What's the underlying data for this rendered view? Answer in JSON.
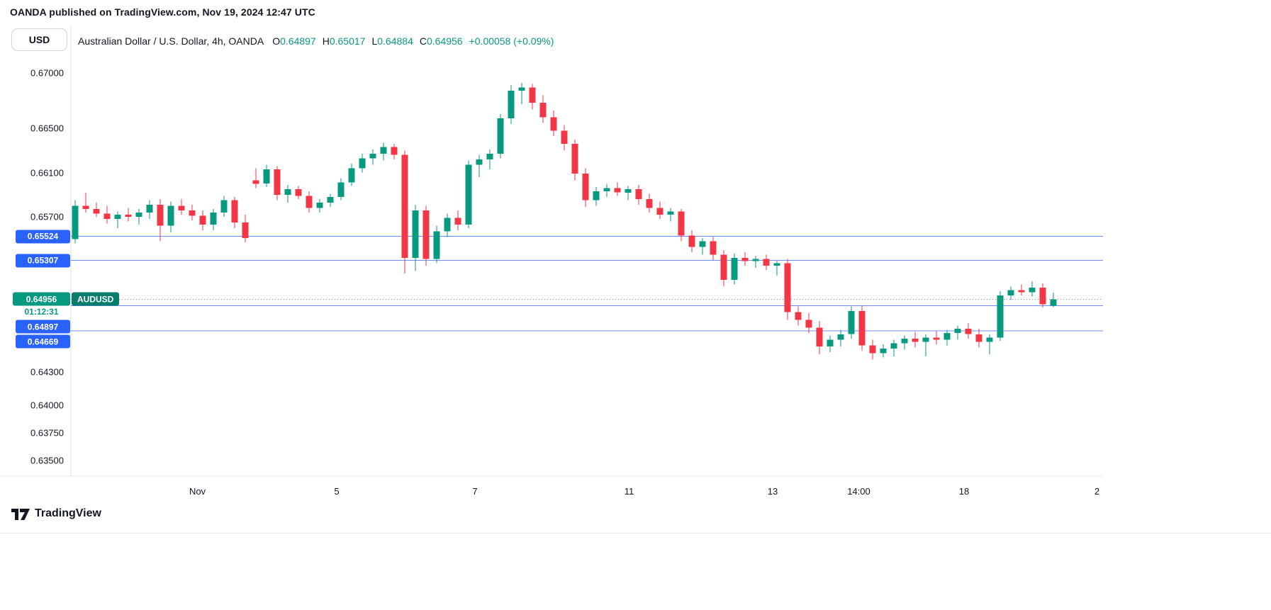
{
  "page": {
    "attribution": "OANDA published on TradingView.com, Nov 19, 2024 12:47 UTC",
    "footer_brand": "TradingView"
  },
  "colors": {
    "up": "#089981",
    "down": "#F23645",
    "level_line": "#6E8EF5",
    "level_badge": "#2962FF",
    "last_price_line": "#80848E",
    "axis_line": "#E0E3EB",
    "symbol_chip": "#077D6B",
    "text": "#131722"
  },
  "header": {
    "symbol_title": "Australian Dollar / U.S. Dollar, 4h, OANDA",
    "ohlc": {
      "o_label": "O",
      "o": "0.64897",
      "h_label": "H",
      "h": "0.65017",
      "l_label": "L",
      "l": "0.64884",
      "c_label": "C",
      "c": "0.64956",
      "change": "+0.00058 (+0.09%)"
    }
  },
  "price_axis": {
    "currency_button": "USD",
    "ticks": [
      {
        "label": "0.67000",
        "value": 0.67
      },
      {
        "label": "0.66500",
        "value": 0.665
      },
      {
        "label": "0.66100",
        "value": 0.661
      },
      {
        "label": "0.65700",
        "value": 0.657
      },
      {
        "label": "0.64300",
        "value": 0.643
      },
      {
        "label": "0.64000",
        "value": 0.64
      },
      {
        "label": "0.63750",
        "value": 0.6375
      },
      {
        "label": "0.63500",
        "value": 0.635
      }
    ],
    "levels": [
      {
        "label": "0.65524",
        "value": 0.65524
      },
      {
        "label": "0.65307",
        "value": 0.65307
      },
      {
        "label": "0.64897",
        "value": 0.64897
      },
      {
        "label": "0.64669",
        "value": 0.64669
      }
    ],
    "last_price": {
      "label": "0.64956",
      "value": 0.64956,
      "symbol_badge": "AUDUSD",
      "countdown": "01:12:31"
    }
  },
  "time_axis": {
    "labels": [
      {
        "text": "Nov",
        "candle_index": 11.5
      },
      {
        "text": "5",
        "candle_index": 24.6
      },
      {
        "text": "7",
        "candle_index": 37.6
      },
      {
        "text": "11",
        "candle_index": 52.1
      },
      {
        "text": "13",
        "candle_index": 65.6
      },
      {
        "text": "14:00",
        "candle_index": 73.7
      },
      {
        "text": "18",
        "candle_index": 83.6
      },
      {
        "text": "2",
        "candle_index": 96.1
      }
    ]
  },
  "chart_data": {
    "type": "candlestick",
    "title": "Australian Dollar / U.S. Dollar, 4h, OANDA",
    "symbol": "AUDUSD",
    "timeframe": "4h",
    "exchange": "OANDA",
    "price_range": [
      0.635,
      0.67
    ],
    "grid": false,
    "time_labels": [
      "Nov",
      "5",
      "7",
      "11",
      "13",
      "14:00",
      "18",
      "2"
    ],
    "last_bar_ohlc": {
      "open": 0.64897,
      "high": 0.65017,
      "low": 0.64884,
      "close": 0.64956
    },
    "candles": [
      [
        0.655,
        0.6585,
        0.6546,
        0.658
      ],
      [
        0.658,
        0.6592,
        0.6574,
        0.6577
      ],
      [
        0.6577,
        0.6583,
        0.657,
        0.6573
      ],
      [
        0.6573,
        0.658,
        0.6564,
        0.6568
      ],
      [
        0.6568,
        0.6575,
        0.656,
        0.6572
      ],
      [
        0.6572,
        0.6578,
        0.6566,
        0.657
      ],
      [
        0.657,
        0.6577,
        0.6563,
        0.6574
      ],
      [
        0.6574,
        0.6585,
        0.6568,
        0.6581
      ],
      [
        0.6581,
        0.6586,
        0.6548,
        0.6562
      ],
      [
        0.6562,
        0.6584,
        0.6556,
        0.658
      ],
      [
        0.658,
        0.6586,
        0.6572,
        0.6576
      ],
      [
        0.6576,
        0.6581,
        0.6567,
        0.6571
      ],
      [
        0.6571,
        0.6576,
        0.6558,
        0.6563
      ],
      [
        0.6563,
        0.6577,
        0.6558,
        0.6574
      ],
      [
        0.6574,
        0.6589,
        0.657,
        0.6585
      ],
      [
        0.6585,
        0.6588,
        0.656,
        0.6565
      ],
      [
        0.6565,
        0.6572,
        0.6547,
        0.6551
      ],
      [
        0.6603,
        0.6614,
        0.6596,
        0.66
      ],
      [
        0.66,
        0.6617,
        0.6597,
        0.6613
      ],
      [
        0.6613,
        0.6616,
        0.6585,
        0.659
      ],
      [
        0.659,
        0.6599,
        0.6583,
        0.6595
      ],
      [
        0.6595,
        0.6598,
        0.6586,
        0.6589
      ],
      [
        0.6589,
        0.6593,
        0.6574,
        0.6578
      ],
      [
        0.6578,
        0.6586,
        0.6574,
        0.6583
      ],
      [
        0.6583,
        0.6591,
        0.6579,
        0.6588
      ],
      [
        0.6588,
        0.6605,
        0.6585,
        0.6601
      ],
      [
        0.6601,
        0.6618,
        0.6598,
        0.6614
      ],
      [
        0.6614,
        0.6627,
        0.661,
        0.6623
      ],
      [
        0.6623,
        0.6631,
        0.6617,
        0.6627
      ],
      [
        0.6627,
        0.6637,
        0.6621,
        0.6633
      ],
      [
        0.6633,
        0.6636,
        0.6622,
        0.6626
      ],
      [
        0.6626,
        0.663,
        0.6519,
        0.6533
      ],
      [
        0.6533,
        0.6581,
        0.6521,
        0.6576
      ],
      [
        0.6576,
        0.658,
        0.6526,
        0.6532
      ],
      [
        0.6532,
        0.6562,
        0.6528,
        0.6557
      ],
      [
        0.6557,
        0.6573,
        0.6552,
        0.6569
      ],
      [
        0.6569,
        0.6576,
        0.6558,
        0.6563
      ],
      [
        0.6563,
        0.6621,
        0.656,
        0.6617
      ],
      [
        0.6617,
        0.6626,
        0.6606,
        0.6622
      ],
      [
        0.6622,
        0.6631,
        0.6613,
        0.6627
      ],
      [
        0.6627,
        0.6663,
        0.6623,
        0.6659
      ],
      [
        0.6659,
        0.6689,
        0.6654,
        0.6684
      ],
      [
        0.6684,
        0.6691,
        0.6672,
        0.6687
      ],
      [
        0.6687,
        0.669,
        0.6667,
        0.6673
      ],
      [
        0.6673,
        0.668,
        0.6655,
        0.666
      ],
      [
        0.666,
        0.6666,
        0.6643,
        0.6648
      ],
      [
        0.6648,
        0.6653,
        0.663,
        0.6636
      ],
      [
        0.6636,
        0.664,
        0.6603,
        0.6609
      ],
      [
        0.6609,
        0.6614,
        0.6579,
        0.6585
      ],
      [
        0.6585,
        0.6597,
        0.658,
        0.6593
      ],
      [
        0.6593,
        0.66,
        0.6588,
        0.6596
      ],
      [
        0.6596,
        0.6601,
        0.6589,
        0.6592
      ],
      [
        0.6592,
        0.6598,
        0.6585,
        0.6595
      ],
      [
        0.6595,
        0.6599,
        0.6581,
        0.6586
      ],
      [
        0.6586,
        0.6591,
        0.6574,
        0.6578
      ],
      [
        0.6578,
        0.6584,
        0.6568,
        0.6572
      ],
      [
        0.6572,
        0.6578,
        0.6566,
        0.6575
      ],
      [
        0.6575,
        0.6577,
        0.6548,
        0.6553
      ],
      [
        0.6553,
        0.6558,
        0.6538,
        0.6543
      ],
      [
        0.6543,
        0.6551,
        0.6536,
        0.6548
      ],
      [
        0.6548,
        0.6552,
        0.6531,
        0.6536
      ],
      [
        0.6536,
        0.654,
        0.6507,
        0.6513
      ],
      [
        0.6513,
        0.6537,
        0.6509,
        0.6533
      ],
      [
        0.6533,
        0.6538,
        0.6526,
        0.653
      ],
      [
        0.653,
        0.6535,
        0.6524,
        0.6532
      ],
      [
        0.6532,
        0.6536,
        0.6522,
        0.6526
      ],
      [
        0.6526,
        0.653,
        0.6517,
        0.6528
      ],
      [
        0.6528,
        0.6532,
        0.6477,
        0.6484
      ],
      [
        0.6484,
        0.6489,
        0.6472,
        0.6477
      ],
      [
        0.6477,
        0.6483,
        0.6465,
        0.647
      ],
      [
        0.647,
        0.6476,
        0.6446,
        0.6453
      ],
      [
        0.6453,
        0.6463,
        0.6448,
        0.6459
      ],
      [
        0.6459,
        0.6468,
        0.6453,
        0.6464
      ],
      [
        0.6464,
        0.6489,
        0.646,
        0.6485
      ],
      [
        0.6485,
        0.649,
        0.6449,
        0.6454
      ],
      [
        0.6454,
        0.6459,
        0.6441,
        0.6447
      ],
      [
        0.6447,
        0.6455,
        0.6443,
        0.6451
      ],
      [
        0.6451,
        0.6459,
        0.6444,
        0.6456
      ],
      [
        0.6456,
        0.6463,
        0.645,
        0.646
      ],
      [
        0.646,
        0.6466,
        0.6452,
        0.6457
      ],
      [
        0.6457,
        0.6464,
        0.6444,
        0.6461
      ],
      [
        0.6461,
        0.6467,
        0.6455,
        0.6459
      ],
      [
        0.6459,
        0.6468,
        0.6454,
        0.6465
      ],
      [
        0.6465,
        0.6472,
        0.6459,
        0.6469
      ],
      [
        0.6469,
        0.6474,
        0.646,
        0.6464
      ],
      [
        0.6464,
        0.6469,
        0.6452,
        0.6457
      ],
      [
        0.6457,
        0.6464,
        0.6446,
        0.6461
      ],
      [
        0.6461,
        0.6503,
        0.6458,
        0.6499
      ],
      [
        0.6499,
        0.6507,
        0.6495,
        0.6504
      ],
      [
        0.6504,
        0.6509,
        0.6499,
        0.6502
      ],
      [
        0.6502,
        0.6512,
        0.6498,
        0.6506
      ],
      [
        0.6506,
        0.651,
        0.6488,
        0.6491
      ],
      [
        0.64897,
        0.65017,
        0.64884,
        0.64956
      ]
    ]
  }
}
